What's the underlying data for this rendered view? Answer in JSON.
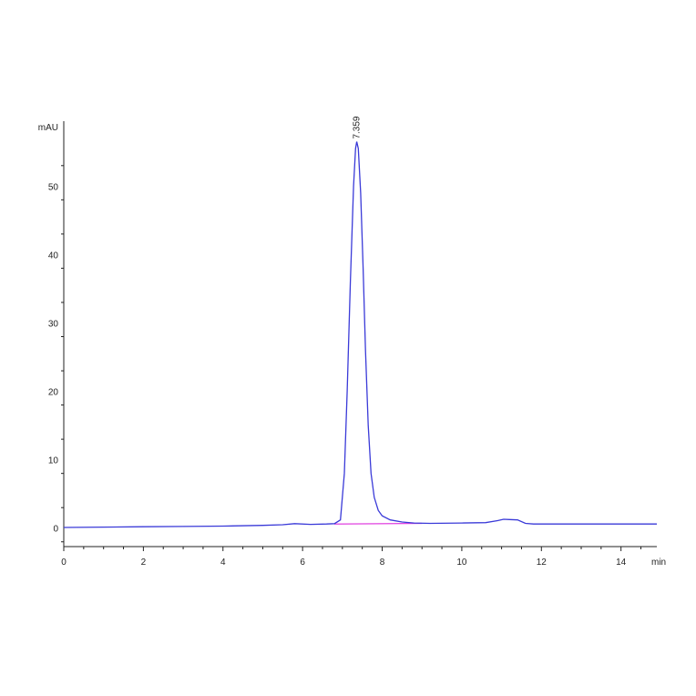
{
  "chart_data": {
    "type": "line",
    "title": "",
    "xlabel": "min",
    "ylabel": "mAU",
    "xlim": [
      0,
      14.9
    ],
    "ylim": [
      -2.7,
      59.5
    ],
    "xticks": [
      0,
      2,
      4,
      6,
      8,
      10,
      12,
      14
    ],
    "yticks": [
      0,
      10,
      20,
      30,
      40,
      50
    ],
    "grid": false,
    "series": [
      {
        "color": "#3a3ad8",
        "x": [
          0,
          1,
          2,
          3,
          4,
          5,
          5.5,
          5.8,
          6.2,
          6.6,
          6.8,
          6.95,
          7.05,
          7.12,
          7.2,
          7.28,
          7.33,
          7.36,
          7.4,
          7.46,
          7.52,
          7.58,
          7.65,
          7.72,
          7.8,
          7.9,
          8.0,
          8.2,
          8.5,
          8.8,
          9.2,
          10,
          10.6,
          10.9,
          11.05,
          11.2,
          11.4,
          11.6,
          11.8,
          12.5,
          13.5,
          14.9
        ],
        "y": [
          0.1,
          0.15,
          0.2,
          0.25,
          0.3,
          0.4,
          0.5,
          0.65,
          0.55,
          0.6,
          0.65,
          1.2,
          8,
          20,
          36,
          50,
          55.5,
          56.5,
          55.5,
          49,
          38,
          26,
          15,
          8,
          4.5,
          2.6,
          1.8,
          1.2,
          0.9,
          0.75,
          0.7,
          0.75,
          0.8,
          1.1,
          1.3,
          1.25,
          1.2,
          0.7,
          0.6,
          0.6,
          0.6,
          0.6
        ]
      }
    ],
    "baseline": {
      "color": "#e040e0",
      "x": [
        6.8,
        9.0
      ],
      "y": [
        0.6,
        0.7
      ]
    },
    "annotations": [
      {
        "text": "7.359",
        "x": 7.359,
        "y": 56.5
      }
    ]
  }
}
